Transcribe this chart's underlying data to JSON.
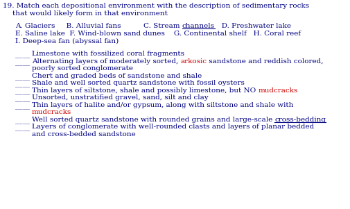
{
  "bg_color": "#ffffff",
  "blue": "#000080",
  "red": "#cc0000",
  "fs": 7.5,
  "fs_title": 7.5,
  "font": "DejaVu Serif",
  "title_line1": "19. Match each depositional environment with the description of sedimentary rocks",
  "title_line2": "    that would likely form in that environment",
  "env_line1_pre": "    A. Glaciers     B. Alluvial fans          C. Stream ",
  "env_line1_ul": "channels",
  "env_line1_post": "   D. Freshwater lake",
  "env_line2": "    E. Saline lake  F. Wind-blown sand dunes    G. Continental shelf   H. Coral reef",
  "env_line3": "    I. Deep-sea fan (abyssal fan)",
  "items": [
    {
      "pre": "Limestone with fossilized coral fragments",
      "mid_red": null,
      "mid_post": null,
      "mid_ul_blue": null,
      "mid_ul_post": null,
      "line2": null,
      "line2_red": null
    },
    {
      "pre": "Alternating layers of moderately sorted, ",
      "mid_red": "arkosic",
      "mid_post": " sandstone and reddish colored,",
      "mid_ul_blue": null,
      "mid_ul_post": null,
      "line2": "poorly sorted conglomerate",
      "line2_red": null
    },
    {
      "pre": "Chert and graded beds of sandstone and shale",
      "mid_red": null,
      "mid_post": null,
      "mid_ul_blue": null,
      "mid_ul_post": null,
      "line2": null,
      "line2_red": null
    },
    {
      "pre": "Shale and well sorted quartz sandstone with fossil oysters",
      "mid_red": null,
      "mid_post": null,
      "mid_ul_blue": null,
      "mid_ul_post": null,
      "line2": null,
      "line2_red": null
    },
    {
      "pre": "Thin layers of siltstone, shale and possibly limestone, but NO ",
      "mid_red": "mudcracks",
      "mid_post": null,
      "mid_ul_blue": null,
      "mid_ul_post": null,
      "line2": null,
      "line2_red": null
    },
    {
      "pre": "Unsorted, unstratified gravel, sand, silt and clay",
      "mid_red": null,
      "mid_post": null,
      "mid_ul_blue": null,
      "mid_ul_post": null,
      "line2": null,
      "line2_red": null
    },
    {
      "pre": "Thin layers of halite and/or gypsum, along with siltstone and shale with",
      "mid_red": null,
      "mid_post": null,
      "mid_ul_blue": null,
      "mid_ul_post": null,
      "line2": null,
      "line2_red": "mudcracks"
    },
    {
      "pre": "Well sorted quartz sandstone with rounded grains and large-scale ",
      "mid_red": null,
      "mid_post": null,
      "mid_ul_blue": "cross-bedding",
      "mid_ul_post": null,
      "line2": null,
      "line2_red": null
    },
    {
      "pre": "Layers of conglomerate with well-rounded clasts and layers of planar bedded",
      "mid_red": null,
      "mid_post": null,
      "mid_ul_blue": null,
      "mid_ul_post": null,
      "line2": "and cross-bedded sandstone",
      "line2_red": null
    }
  ]
}
